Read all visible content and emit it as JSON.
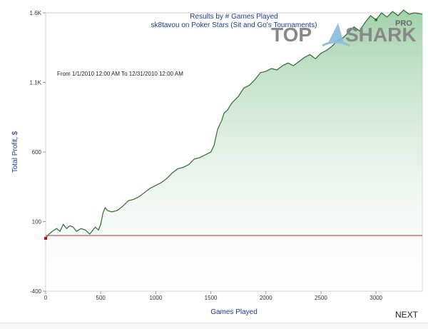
{
  "nav": {
    "next_label": "NEXT"
  },
  "logo": {
    "text_top": "TOP",
    "text_shark": "SHARK",
    "text_pro": "PRO"
  },
  "colors": {
    "line": "#2e6b2e",
    "area_top": "#9ecfa7",
    "area_bottom": "#ffffff",
    "baseline": "#b03030",
    "title": "#1f3c8c",
    "grid": "#dddddd"
  },
  "chart_data": {
    "type": "area",
    "title": "Results by # Games Played",
    "subtitle": "sk8tavou on Poker Stars (Sit and Go's Tournaments)",
    "annotation": "From 1/1/2010 12:00 AM To 12/31/2010 12:00 AM",
    "xlabel": "Games Played",
    "ylabel": "Total Profit, $",
    "xlim": [
      0,
      3420
    ],
    "ylim": [
      -400,
      1600
    ],
    "xticks": [
      0,
      500,
      1000,
      1500,
      2000,
      2500,
      3000
    ],
    "yticks": [
      -400,
      100,
      600,
      1100,
      1600
    ],
    "ytick_labels": [
      "-400",
      "100",
      "600",
      "1.1K",
      "1.6K"
    ],
    "baseline_value": 0,
    "series": [
      {
        "x": [
          0,
          30,
          60,
          100,
          130,
          160,
          190,
          220,
          250,
          280,
          320,
          360,
          400,
          430,
          450,
          480,
          500,
          520,
          540,
          560,
          600,
          650,
          700,
          750,
          800,
          850,
          900,
          950,
          1000,
          1050,
          1100,
          1150,
          1200,
          1250,
          1300,
          1350,
          1400,
          1450,
          1500,
          1530,
          1560,
          1600,
          1620,
          1650,
          1680,
          1700,
          1750,
          1800,
          1850,
          1900,
          1950,
          2000,
          2050,
          2100,
          2150,
          2200,
          2250,
          2300,
          2350,
          2400,
          2450,
          2500,
          2550,
          2600,
          2650,
          2700,
          2750,
          2800,
          2850,
          2900,
          2950,
          3000,
          3050,
          3100,
          3150,
          3200,
          3250,
          3300,
          3350,
          3420
        ],
        "y": [
          -20,
          10,
          30,
          50,
          30,
          80,
          50,
          70,
          60,
          30,
          50,
          40,
          10,
          40,
          60,
          40,
          80,
          160,
          200,
          180,
          170,
          180,
          210,
          250,
          260,
          280,
          310,
          340,
          360,
          380,
          410,
          450,
          480,
          490,
          510,
          550,
          560,
          580,
          600,
          650,
          760,
          830,
          880,
          900,
          940,
          960,
          1000,
          1060,
          1080,
          1120,
          1170,
          1180,
          1200,
          1190,
          1220,
          1240,
          1220,
          1250,
          1280,
          1300,
          1270,
          1310,
          1330,
          1360,
          1400,
          1420,
          1460,
          1500,
          1470,
          1530,
          1580,
          1550,
          1600,
          1570,
          1610,
          1580,
          1620,
          1590,
          1600,
          1590
        ]
      }
    ],
    "grid": false,
    "legend": "none"
  }
}
